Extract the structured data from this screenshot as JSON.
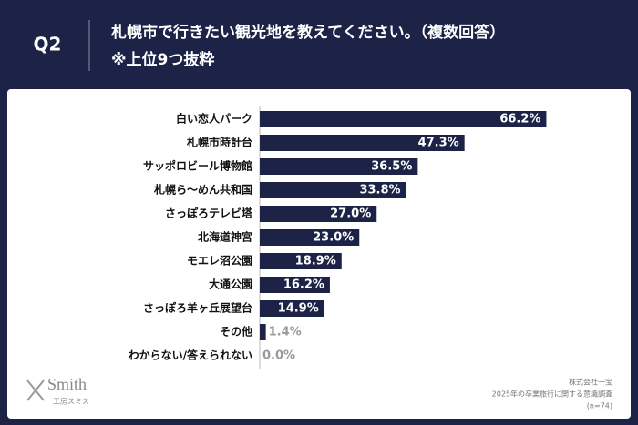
{
  "chart_data": {
    "type": "hbar",
    "label": "Q2",
    "title": "札幌市で行きたい観光地を教えてください。（複数回答）",
    "subtitle": "※上位9つ抜粋",
    "categories": [
      "白い恋人パーク",
      "札幌市時計台",
      "サッポロビール博物館",
      "札幌ら〜めん共和国",
      "さっぽろテレビ塔",
      "北海道神宮",
      "モエレ沼公園",
      "大通公園",
      "さっぽろ羊ヶ丘展望台",
      "その他",
      "わからない/答えられない"
    ],
    "values": [
      66.2,
      47.3,
      36.5,
      33.8,
      27.0,
      23.0,
      18.9,
      16.2,
      14.9,
      1.4,
      0.0
    ],
    "value_labels": [
      "66.2%",
      "47.3%",
      "36.5%",
      "33.8%",
      "27.0%",
      "23.0%",
      "18.9%",
      "16.2%",
      "14.9%",
      "1.4%",
      "0.0%"
    ],
    "color": "#1c2347",
    "xlim": [
      0,
      80
    ],
    "brand": "Smith",
    "brand_sub": "工房スミス",
    "source": [
      "株式会社一宝",
      "2025年の卒業旅行に関する意識調査",
      "(n=74)"
    ]
  }
}
